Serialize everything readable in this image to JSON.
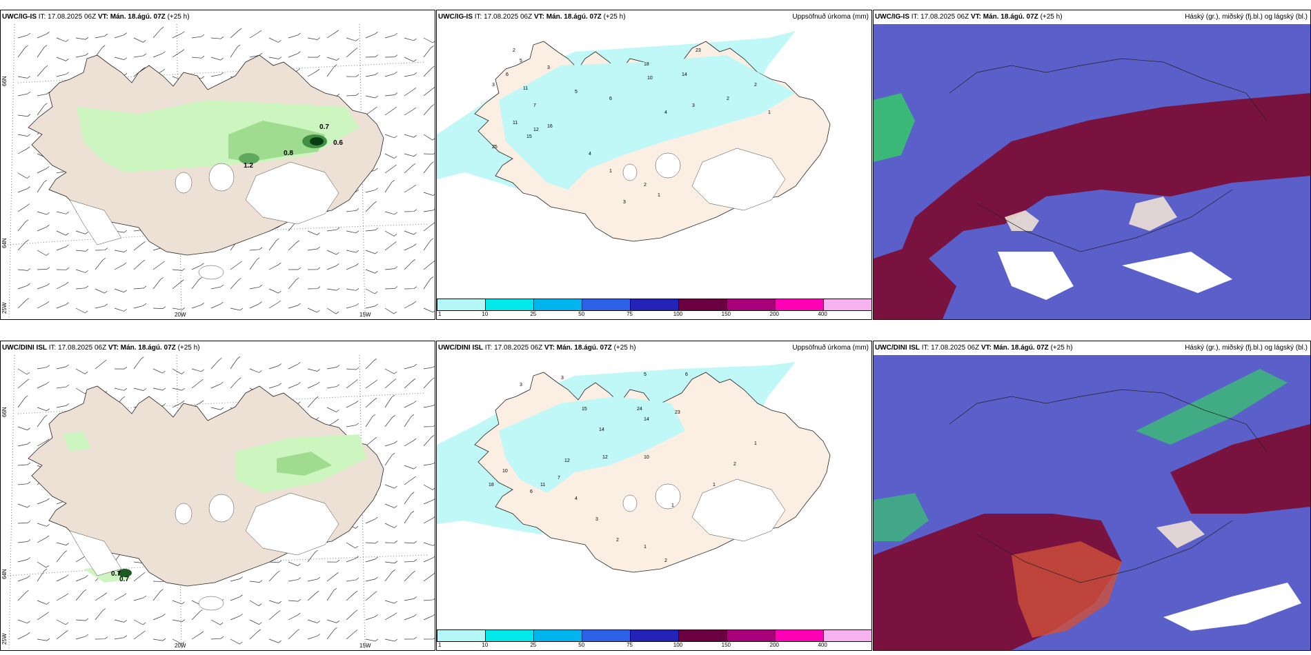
{
  "panels": {
    "ig_wind": {
      "model": "UWC/IG-IS",
      "it_label": "IT:",
      "it": "17.08.2025 06Z",
      "vt_label": "VT:",
      "vt": "Mán. 18.ágú. 07Z",
      "lead": "(+25 h)",
      "right": ""
    },
    "ig_precip": {
      "model": "UWC/IG-IS",
      "it_label": "IT:",
      "it": "17.08.2025 06Z",
      "vt_label": "VT:",
      "vt": "Mán. 18.ágú. 07Z",
      "lead": "(+25 h)",
      "right": "Uppsöfnuð úrkoma (mm)"
    },
    "ig_cloud": {
      "model": "UWC/IG-IS",
      "it_label": "IT:",
      "it": "17.08.2025 06Z",
      "vt_label": "VT:",
      "vt": "Mán. 18.ágú. 07Z",
      "lead": "(+25 h)",
      "right": "Háský (gr.), miðský (fj.bl.) og lágský (bl.)"
    },
    "dini_wind": {
      "model": "UWC/DINI ISL",
      "it_label": "IT:",
      "it": "17.08.2025 06Z",
      "vt_label": "VT:",
      "vt": "Mán. 18.ágú. 07Z",
      "lead": "(+25 h)",
      "right": ""
    },
    "dini_precip": {
      "model": "UWC/DINI ISL",
      "it_label": "IT:",
      "it": "17.08.2025 06Z",
      "vt_label": "VT:",
      "vt": "Mán. 18.ágú. 07Z",
      "lead": "(+25 h)",
      "right": "Uppsöfnuð úrkoma (mm)"
    },
    "dini_cloud": {
      "model": "UWC/DINI ISL",
      "it_label": "IT:",
      "it": "17.08.2025 06Z",
      "vt_label": "VT:",
      "vt": "Mán. 18.ágú. 07Z",
      "lead": "(+25 h)",
      "right": "Háský (gr.), miðský (fj.bl.) og lágský (bl.)"
    }
  },
  "axis_labels": {
    "lat66": "66N",
    "lat64": "64N",
    "lon20": "20W",
    "lon15": "15W",
    "lon25": "25W"
  },
  "wind_values": {
    "ig": [
      "0.7",
      "0.6",
      "0.8",
      "1.2"
    ],
    "dini": [
      "0.7",
      "0.7"
    ]
  },
  "precip_legend": {
    "ticks": [
      "1",
      "10",
      "25",
      "50",
      "75",
      "100",
      "150",
      "200",
      "400"
    ],
    "colors": [
      "#b3f7f7",
      "#00e8ea",
      "#00b4ee",
      "#2d62e6",
      "#2323b8",
      "#6a0040",
      "#a8007a",
      "#ff00b4",
      "#f5b4f0"
    ]
  },
  "precip_values": {
    "ig": [
      "2",
      "5",
      "6",
      "11",
      "3",
      "18",
      "10",
      "14",
      "23",
      "3",
      "7",
      "5",
      "6",
      "4",
      "3",
      "2",
      "2",
      "1",
      "11",
      "12",
      "16",
      "15",
      "25",
      "4",
      "1",
      "2",
      "3",
      "1"
    ],
    "dini": [
      "3",
      "3",
      "5",
      "6",
      "15",
      "14",
      "24",
      "14",
      "23",
      "12",
      "10",
      "12",
      "11",
      "10",
      "18",
      "6",
      "7",
      "4",
      "3",
      "2",
      "1",
      "2",
      "1",
      "1",
      "2",
      "1"
    ]
  },
  "colors": {
    "land": "#ede0d4",
    "sea": "#ffffff",
    "precip_light": "#b3f7f7",
    "precip_sea": "#bff8f6",
    "green_light": "#ccf5c0",
    "green_mid": "#9fdc90",
    "green_dark": "#0a5a1a",
    "cloud_blue": "#5a5fc9",
    "cloud_maroon": "#7a1240",
    "cloud_green": "#3cb878",
    "cloud_red": "#d0503a"
  }
}
